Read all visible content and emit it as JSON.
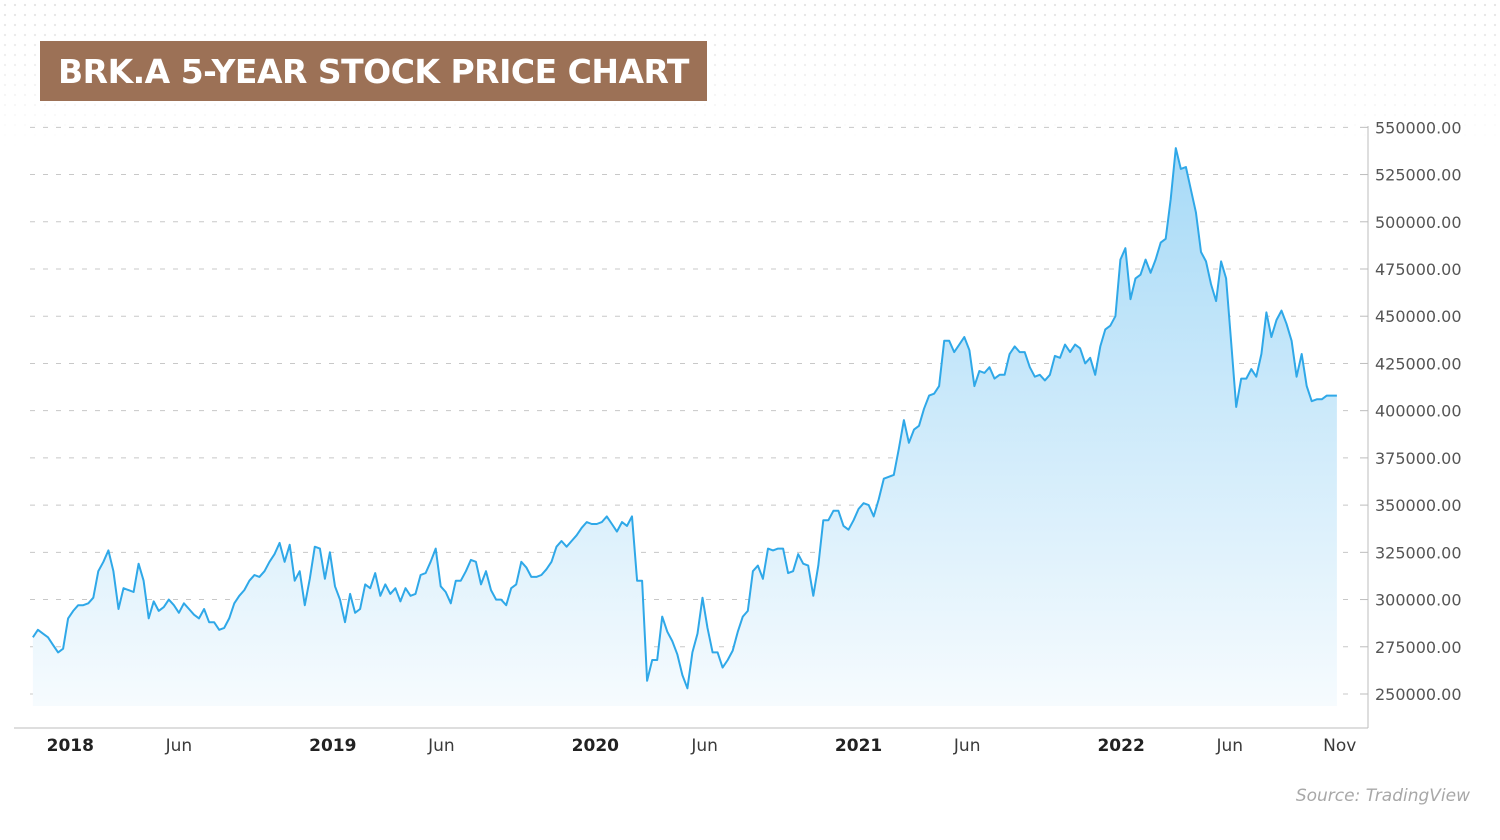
{
  "header": {
    "title": "BRK.A 5-YEAR STOCK PRICE CHART"
  },
  "footer": {
    "source": "Source: TradingView"
  },
  "colors": {
    "line": "#2fa8e8",
    "fill_top": "#a7daf7",
    "fill_bottom": "#f6fbfe",
    "title_bg": "#9c7156"
  },
  "chart_data": {
    "type": "area",
    "title": "BRK.A 5-YEAR STOCK PRICE CHART",
    "xlabel": "",
    "ylabel": "",
    "ylim": [
      232000,
      556000
    ],
    "xlim": [
      "2017-11-06",
      "2022-11-18"
    ],
    "y_ticks": [
      "250000.00",
      "275000.00",
      "300000.00",
      "325000.00",
      "350000.00",
      "375000.00",
      "400000.00",
      "425000.00",
      "450000.00",
      "475000.00",
      "500000.00",
      "525000.00",
      "550000.00"
    ],
    "x_ticks": [
      {
        "label": "2018",
        "date": "2018-01-01",
        "major": true
      },
      {
        "label": "Jun",
        "date": "2018-06-01",
        "major": false
      },
      {
        "label": "2019",
        "date": "2019-01-01",
        "major": true
      },
      {
        "label": "Jun",
        "date": "2019-06-01",
        "major": false
      },
      {
        "label": "2020",
        "date": "2020-01-01",
        "major": true
      },
      {
        "label": "Jun",
        "date": "2020-06-01",
        "major": false
      },
      {
        "label": "2021",
        "date": "2021-01-01",
        "major": true
      },
      {
        "label": "Jun",
        "date": "2021-06-01",
        "major": false
      },
      {
        "label": "2022",
        "date": "2022-01-01",
        "major": true
      },
      {
        "label": "Jun",
        "date": "2022-06-01",
        "major": false
      },
      {
        "label": "Nov",
        "date": "2022-11-01",
        "major": false
      }
    ],
    "grid": "horizontal-dashed",
    "legend": "none",
    "series": [
      {
        "x": [
          "2017-11-10",
          "2017-11-17",
          "2017-11-24",
          "2017-12-01",
          "2017-12-08",
          "2017-12-15",
          "2017-12-22",
          "2017-12-29",
          "2018-01-05",
          "2018-01-12",
          "2018-01-19",
          "2018-01-26",
          "2018-02-02",
          "2018-02-09",
          "2018-02-16",
          "2018-02-23",
          "2018-03-02",
          "2018-03-09",
          "2018-03-16",
          "2018-03-23",
          "2018-03-30",
          "2018-04-06",
          "2018-04-13",
          "2018-04-20",
          "2018-04-27",
          "2018-05-04",
          "2018-05-11",
          "2018-05-18",
          "2018-05-25",
          "2018-06-01",
          "2018-06-08",
          "2018-06-15",
          "2018-06-22",
          "2018-06-29",
          "2018-07-06",
          "2018-07-13",
          "2018-07-20",
          "2018-07-27",
          "2018-08-03",
          "2018-08-10",
          "2018-08-17",
          "2018-08-24",
          "2018-08-31",
          "2018-09-07",
          "2018-09-14",
          "2018-09-21",
          "2018-09-28",
          "2018-10-05",
          "2018-10-12",
          "2018-10-19",
          "2018-10-26",
          "2018-11-02",
          "2018-11-09",
          "2018-11-16",
          "2018-11-23",
          "2018-11-30",
          "2018-12-07",
          "2018-12-14",
          "2018-12-21",
          "2018-12-28",
          "2019-01-04",
          "2019-01-11",
          "2019-01-18",
          "2019-01-25",
          "2019-02-01",
          "2019-02-08",
          "2019-02-15",
          "2019-02-22",
          "2019-03-01",
          "2019-03-08",
          "2019-03-15",
          "2019-03-22",
          "2019-03-29",
          "2019-04-05",
          "2019-04-12",
          "2019-04-19",
          "2019-04-26",
          "2019-05-03",
          "2019-05-10",
          "2019-05-17",
          "2019-05-24",
          "2019-05-31",
          "2019-06-07",
          "2019-06-14",
          "2019-06-21",
          "2019-06-28",
          "2019-07-05",
          "2019-07-12",
          "2019-07-19",
          "2019-07-26",
          "2019-08-02",
          "2019-08-09",
          "2019-08-16",
          "2019-08-23",
          "2019-08-30",
          "2019-09-06",
          "2019-09-13",
          "2019-09-20",
          "2019-09-27",
          "2019-10-04",
          "2019-10-11",
          "2019-10-18",
          "2019-10-25",
          "2019-11-01",
          "2019-11-08",
          "2019-11-15",
          "2019-11-22",
          "2019-11-29",
          "2019-12-06",
          "2019-12-13",
          "2019-12-20",
          "2019-12-27",
          "2020-01-03",
          "2020-01-10",
          "2020-01-17",
          "2020-01-24",
          "2020-01-31",
          "2020-02-07",
          "2020-02-14",
          "2020-02-21",
          "2020-02-28",
          "2020-03-06",
          "2020-03-13",
          "2020-03-20",
          "2020-03-27",
          "2020-04-03",
          "2020-04-10",
          "2020-04-17",
          "2020-04-24",
          "2020-05-01",
          "2020-05-08",
          "2020-05-15",
          "2020-05-22",
          "2020-05-29",
          "2020-06-05",
          "2020-06-12",
          "2020-06-19",
          "2020-06-26",
          "2020-07-03",
          "2020-07-10",
          "2020-07-17",
          "2020-07-24",
          "2020-07-31",
          "2020-08-07",
          "2020-08-14",
          "2020-08-21",
          "2020-08-28",
          "2020-09-04",
          "2020-09-11",
          "2020-09-18",
          "2020-09-25",
          "2020-10-02",
          "2020-10-09",
          "2020-10-16",
          "2020-10-23",
          "2020-10-30",
          "2020-11-06",
          "2020-11-13",
          "2020-11-20",
          "2020-11-27",
          "2020-12-04",
          "2020-12-11",
          "2020-12-18",
          "2020-12-25",
          "2021-01-01",
          "2021-01-08",
          "2021-01-15",
          "2021-01-22",
          "2021-01-29",
          "2021-02-05",
          "2021-02-12",
          "2021-02-19",
          "2021-02-26",
          "2021-03-05",
          "2021-03-12",
          "2021-03-19",
          "2021-03-26",
          "2021-04-02",
          "2021-04-09",
          "2021-04-16",
          "2021-04-23",
          "2021-04-30",
          "2021-05-07",
          "2021-05-14",
          "2021-05-21",
          "2021-05-28",
          "2021-06-04",
          "2021-06-11",
          "2021-06-18",
          "2021-06-25",
          "2021-07-02",
          "2021-07-09",
          "2021-07-16",
          "2021-07-23",
          "2021-07-30",
          "2021-08-06",
          "2021-08-13",
          "2021-08-20",
          "2021-08-27",
          "2021-09-03",
          "2021-09-10",
          "2021-09-17",
          "2021-09-24",
          "2021-10-01",
          "2021-10-08",
          "2021-10-15",
          "2021-10-22",
          "2021-10-29",
          "2021-11-05",
          "2021-11-12",
          "2021-11-19",
          "2021-11-26",
          "2021-12-03",
          "2021-12-10",
          "2021-12-17",
          "2021-12-24",
          "2021-12-31",
          "2022-01-07",
          "2022-01-14",
          "2022-01-21",
          "2022-01-28",
          "2022-02-04",
          "2022-02-11",
          "2022-02-18",
          "2022-02-25",
          "2022-03-04",
          "2022-03-11",
          "2022-03-18",
          "2022-03-25",
          "2022-04-01",
          "2022-04-08",
          "2022-04-15",
          "2022-04-22",
          "2022-04-29",
          "2022-05-06",
          "2022-05-13",
          "2022-05-20",
          "2022-05-27",
          "2022-06-03",
          "2022-06-10",
          "2022-06-17",
          "2022-06-24",
          "2022-07-01",
          "2022-07-08",
          "2022-07-15",
          "2022-07-22",
          "2022-07-29",
          "2022-08-05",
          "2022-08-12",
          "2022-08-19",
          "2022-08-26",
          "2022-09-02",
          "2022-09-09",
          "2022-09-16",
          "2022-09-23",
          "2022-09-30",
          "2022-10-07",
          "2022-10-14",
          "2022-10-21",
          "2022-10-28"
        ],
        "values": [
          280000,
          284000,
          282000,
          280000,
          276000,
          272000,
          274000,
          290000,
          294000,
          297000,
          297000,
          298000,
          301000,
          315000,
          320000,
          326000,
          315000,
          295000,
          306000,
          305000,
          304000,
          319000,
          310000,
          290000,
          299000,
          294000,
          296000,
          300000,
          297000,
          293000,
          298000,
          295000,
          292000,
          290000,
          295000,
          288000,
          288000,
          284000,
          285000,
          290000,
          298000,
          302000,
          305000,
          310000,
          313000,
          312000,
          315000,
          320000,
          324000,
          330000,
          320000,
          329000,
          310000,
          315000,
          297000,
          311000,
          328000,
          327000,
          311000,
          325000,
          307000,
          300000,
          288000,
          303000,
          293000,
          295000,
          308000,
          306000,
          314000,
          302000,
          308000,
          303000,
          306000,
          299000,
          306000,
          302000,
          303000,
          313000,
          314000,
          320000,
          327000,
          307000,
          304000,
          298000,
          310000,
          310000,
          315000,
          321000,
          320000,
          308000,
          315000,
          305000,
          300000,
          300000,
          297000,
          306000,
          308000,
          320000,
          317000,
          312000,
          312000,
          313000,
          316000,
          320000,
          328000,
          331000,
          328000,
          331000,
          334000,
          338000,
          341000,
          340000,
          340000,
          341000,
          344000,
          340000,
          336000,
          341000,
          339000,
          344000,
          310000,
          310000,
          257000,
          268000,
          268000,
          291000,
          283000,
          278000,
          271000,
          260000,
          253000,
          272000,
          282000,
          301000,
          285000,
          272000,
          272000,
          264000,
          268000,
          273000,
          283000,
          291000,
          294000,
          315000,
          318000,
          311000,
          327000,
          326000,
          327000,
          327000,
          314000,
          315000,
          324000,
          319000,
          318000,
          302000,
          318000,
          342000,
          342000,
          347000,
          347000,
          339000,
          337000,
          342000,
          348000,
          351000,
          350000,
          344000,
          353000,
          364000,
          365000,
          366000,
          380000,
          395000,
          383000,
          390000,
          392000,
          401000,
          408000,
          409000,
          413000,
          437000,
          437000,
          431000,
          435000,
          439000,
          432000,
          413000,
          421000,
          420000,
          423000,
          417000,
          419000,
          419000,
          430000,
          434000,
          431000,
          431000,
          423000,
          418000,
          419000,
          416000,
          419000,
          429000,
          428000,
          435000,
          431000,
          435000,
          433000,
          425000,
          428000,
          419000,
          434000,
          443000,
          445000,
          450000,
          480000,
          486000,
          459000,
          470000,
          472000,
          480000,
          473000,
          480000,
          489000,
          491000,
          512000,
          539000,
          528000,
          529000,
          517000,
          505000,
          484000,
          479000,
          467000,
          458000,
          479000,
          470000,
          436000,
          402000,
          417000,
          417000,
          422000,
          418000,
          430000,
          452000,
          439000,
          448000,
          453000,
          446000,
          437000,
          418000,
          430000,
          413000,
          405000,
          406000,
          406000,
          408000,
          408000,
          408000
        ]
      }
    ]
  }
}
